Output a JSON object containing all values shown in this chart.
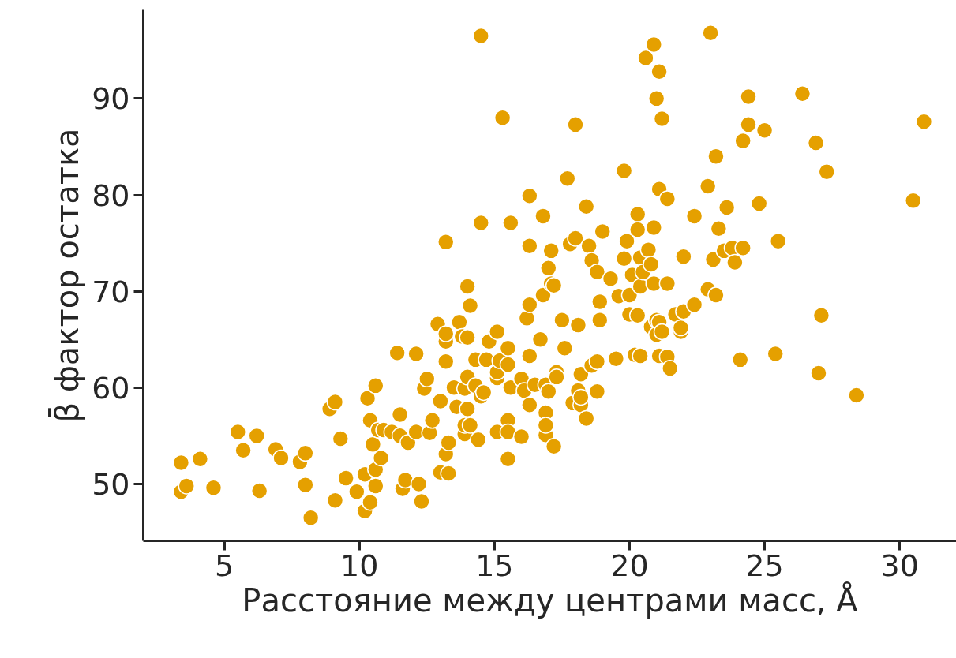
{
  "chart_data": {
    "type": "scatter",
    "xlabel": "Расстояние между центрами масс, Å",
    "ylabel": "β̄ фактор остатка",
    "xlim": [
      2.0,
      32.1
    ],
    "ylim": [
      44.1,
      99.2
    ],
    "xticks": [
      5,
      10,
      15,
      20,
      25,
      30
    ],
    "yticks": [
      50,
      60,
      70,
      80,
      90
    ],
    "grid": false,
    "marker": "circle",
    "series": [
      {
        "color": "#e5a000",
        "x": [
          3.4,
          3.4,
          3.6,
          4.1,
          4.6,
          5.5,
          5.7,
          6.2,
          6.3,
          6.9,
          7.1,
          7.8,
          8.0,
          8.0,
          8.2,
          8.9,
          9.1,
          9.1,
          9.3,
          9.5,
          9.9,
          10.2,
          10.2,
          10.3,
          10.4,
          10.4,
          10.5,
          10.6,
          10.6,
          10.6,
          10.7,
          10.8,
          10.9,
          11.2,
          11.4,
          11.5,
          11.5,
          11.6,
          11.7,
          11.8,
          12.1,
          12.1,
          12.2,
          12.3,
          12.4,
          12.5,
          12.6,
          12.7,
          12.9,
          13.0,
          13.0,
          13.2,
          13.2,
          13.2,
          13.2,
          13.2,
          13.3,
          13.3,
          13.5,
          13.6,
          13.7,
          13.8,
          13.9,
          13.9,
          13.9,
          14.0,
          14.0,
          14.0,
          14.0,
          14.1,
          14.1,
          14.3,
          14.3,
          14.4,
          14.5,
          14.5,
          14.5,
          14.6,
          14.7,
          14.8,
          15.1,
          15.1,
          15.1,
          15.1,
          15.2,
          15.3,
          15.5,
          15.5,
          15.5,
          15.5,
          15.5,
          15.6,
          15.6,
          16.0,
          16.0,
          16.1,
          16.2,
          16.3,
          16.3,
          16.3,
          16.3,
          16.3,
          16.5,
          16.7,
          16.8,
          16.8,
          16.9,
          16.9,
          16.9,
          16.9,
          17.0,
          17.0,
          17.1,
          17.1,
          17.2,
          17.2,
          17.3,
          17.3,
          17.5,
          17.6,
          17.7,
          17.8,
          17.9,
          18.0,
          18.0,
          18.1,
          18.1,
          18.2,
          18.2,
          18.2,
          18.4,
          18.4,
          18.5,
          18.6,
          18.6,
          18.8,
          18.8,
          18.8,
          18.9,
          18.9,
          19.0,
          19.3,
          19.5,
          19.6,
          19.8,
          19.8,
          19.9,
          20.0,
          20.0,
          20.1,
          20.2,
          20.3,
          20.3,
          20.3,
          20.4,
          20.4,
          20.4,
          20.5,
          20.6,
          20.7,
          20.8,
          20.8,
          20.9,
          20.9,
          20.9,
          21.0,
          21.0,
          21.0,
          21.1,
          21.1,
          21.1,
          21.1,
          21.2,
          21.2,
          21.4,
          21.4,
          21.4,
          21.5,
          21.7,
          21.9,
          21.9,
          22.0,
          22.0,
          22.4,
          22.4,
          22.9,
          22.9,
          23.0,
          23.1,
          23.2,
          23.2,
          23.3,
          23.5,
          23.6,
          23.8,
          23.9,
          24.1,
          24.2,
          24.2,
          24.4,
          24.4,
          24.8,
          25.0,
          25.4,
          25.5,
          26.4,
          26.9,
          27.0,
          27.1,
          27.3,
          28.4,
          30.5,
          30.9
        ],
        "values": [
          49.2,
          52.2,
          49.8,
          52.6,
          49.6,
          55.4,
          53.5,
          55.0,
          49.3,
          53.6,
          52.7,
          52.3,
          53.2,
          49.9,
          46.5,
          57.8,
          58.5,
          48.3,
          54.7,
          50.6,
          49.2,
          51.0,
          47.2,
          58.9,
          48.1,
          56.6,
          54.1,
          49.8,
          51.5,
          60.2,
          55.6,
          52.7,
          55.6,
          55.4,
          63.6,
          57.2,
          55.0,
          49.5,
          50.4,
          54.3,
          63.5,
          55.4,
          50.0,
          48.2,
          59.9,
          60.9,
          55.3,
          56.6,
          66.6,
          51.2,
          58.6,
          62.7,
          64.8,
          53.1,
          65.6,
          75.1,
          54.3,
          51.1,
          60.0,
          58.0,
          66.8,
          65.3,
          55.2,
          59.9,
          56.1,
          61.1,
          57.8,
          65.2,
          70.5,
          68.5,
          56.1,
          60.2,
          62.9,
          54.6,
          59.1,
          77.1,
          96.5,
          59.5,
          62.9,
          64.8,
          61.0,
          61.6,
          55.4,
          65.8,
          62.8,
          88.0,
          62.4,
          64.1,
          56.6,
          55.4,
          52.6,
          77.1,
          60.0,
          60.9,
          54.9,
          59.7,
          67.2,
          63.3,
          68.6,
          74.7,
          79.9,
          58.2,
          60.3,
          65.0,
          69.6,
          77.8,
          55.1,
          57.4,
          60.3,
          56.1,
          59.6,
          72.4,
          70.8,
          74.2,
          70.6,
          53.9,
          61.6,
          61.1,
          67.0,
          64.1,
          81.7,
          74.9,
          58.4,
          87.3,
          75.5,
          59.7,
          66.5,
          58.2,
          61.4,
          59.0,
          56.8,
          78.8,
          74.7,
          73.2,
          62.3,
          72.0,
          59.6,
          62.7,
          67.0,
          68.9,
          76.2,
          71.3,
          63.0,
          69.5,
          82.5,
          73.4,
          75.2,
          67.6,
          69.6,
          71.7,
          63.4,
          78.0,
          76.4,
          67.5,
          63.3,
          73.5,
          70.5,
          72.0,
          94.2,
          74.3,
          72.8,
          66.3,
          95.6,
          76.6,
          70.8,
          90.0,
          67.0,
          65.5,
          92.8,
          80.6,
          66.8,
          63.3,
          87.9,
          65.8,
          79.6,
          70.8,
          63.2,
          62.0,
          67.6,
          65.8,
          66.2,
          67.9,
          73.6,
          68.6,
          77.8,
          80.9,
          70.2,
          96.8,
          73.3,
          84.0,
          69.6,
          76.5,
          74.2,
          78.7,
          74.5,
          73.0,
          62.9,
          74.5,
          85.6,
          87.3,
          90.2,
          79.1,
          86.7,
          63.5,
          75.2,
          90.5,
          85.4,
          61.5,
          67.5,
          82.4,
          59.2,
          79.4,
          87.6
        ]
      }
    ]
  }
}
